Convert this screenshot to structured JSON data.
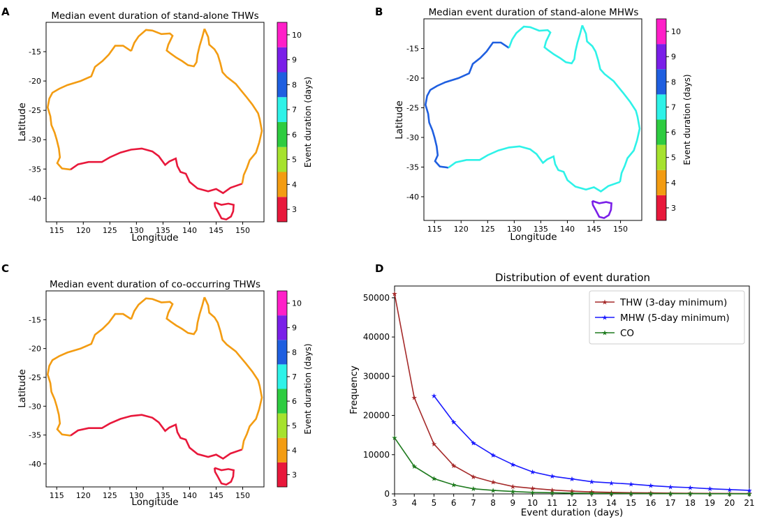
{
  "panel_letters": [
    "A",
    "B",
    "C",
    "D"
  ],
  "colorbar": {
    "label": "Event duration (days)",
    "ticks": [
      "3",
      "4",
      "5",
      "6",
      "7",
      "8",
      "9",
      "10"
    ],
    "colors": [
      "#e8183b",
      "#f39c12",
      "#a6e22e",
      "#2ecc40",
      "#2ef2e8",
      "#1f5fe0",
      "#7a1fe8",
      "#ff1fc8"
    ]
  },
  "chart_data": [
    {
      "type": "map",
      "panel": "A",
      "title": "Median event duration of stand-alone THWs",
      "xlabel": "Longitude",
      "ylabel": "Latitude",
      "xticks": [
        "115",
        "120",
        "125",
        "130",
        "135",
        "140",
        "145",
        "150"
      ],
      "yticks": [
        "-15",
        "-20",
        "-25",
        "-30",
        "-35",
        "-40"
      ],
      "xlim": [
        113,
        154
      ],
      "ylim": [
        -44,
        -10
      ],
      "coast_colors": {
        "north": "#f39c12",
        "west": "#f39c12",
        "south": "#e8183b",
        "east": "#f39c12",
        "tasmania": "#e8183b"
      }
    },
    {
      "type": "map",
      "panel": "B",
      "title": "Median event duration of stand-alone MHWs",
      "xlabel": "Longitude",
      "ylabel": "Latitude",
      "xticks": [
        "115",
        "120",
        "125",
        "130",
        "135",
        "140",
        "145",
        "150"
      ],
      "yticks": [
        "-15",
        "-20",
        "-25",
        "-30",
        "-35",
        "-40"
      ],
      "xlim": [
        113,
        154
      ],
      "ylim": [
        -44,
        -10
      ],
      "coast_colors": {
        "north": "#2ef2e8",
        "west": "#1f5fe0",
        "south": "#2ef2e8",
        "east": "#2ef2e8",
        "tasmania": "#7a1fe8"
      }
    },
    {
      "type": "map",
      "panel": "C",
      "title": "Median event duration of co-occurring THWs",
      "xlabel": "Longitude",
      "ylabel": "Latitude",
      "xticks": [
        "115",
        "120",
        "125",
        "130",
        "135",
        "140",
        "145",
        "150"
      ],
      "yticks": [
        "-15",
        "-20",
        "-25",
        "-30",
        "-35",
        "-40"
      ],
      "xlim": [
        113,
        154
      ],
      "ylim": [
        -44,
        -10
      ],
      "coast_colors": {
        "north": "#f39c12",
        "west": "#f39c12",
        "south": "#e8183b",
        "east": "#f39c12",
        "tasmania": "#e8183b"
      }
    },
    {
      "type": "line",
      "panel": "D",
      "title": "Distribution of event duration",
      "xlabel": "Event duration (days)",
      "ylabel": "Frequency",
      "x": [
        3,
        4,
        5,
        6,
        7,
        8,
        9,
        10,
        11,
        12,
        13,
        14,
        15,
        16,
        17,
        18,
        19,
        20,
        21
      ],
      "xlim": [
        3,
        21
      ],
      "ylim": [
        0,
        53000
      ],
      "yticks": [
        0,
        10000,
        20000,
        30000,
        40000,
        50000
      ],
      "legend_position": "top-right",
      "series": [
        {
          "name": "THW (3-day minimum)",
          "color": "#a52a2a",
          "x": [
            3,
            4,
            5,
            6,
            7,
            8,
            9,
            10,
            11,
            12,
            13,
            14,
            15,
            16,
            17,
            18,
            19,
            20,
            21
          ],
          "values": [
            51000,
            24500,
            12700,
            7200,
            4400,
            3000,
            1900,
            1400,
            1000,
            700,
            500,
            400,
            300,
            250,
            200,
            150,
            120,
            100,
            80
          ]
        },
        {
          "name": "MHW (5-day minimum)",
          "color": "#1a1aff",
          "x": [
            5,
            6,
            7,
            8,
            9,
            10,
            11,
            12,
            13,
            14,
            15,
            16,
            17,
            18,
            19,
            20,
            21
          ],
          "values": [
            25000,
            18300,
            13000,
            9900,
            7500,
            5600,
            4500,
            3800,
            3100,
            2800,
            2500,
            2100,
            1800,
            1600,
            1300,
            1100,
            900
          ]
        },
        {
          "name": "CO",
          "color": "#1e7a1e",
          "x": [
            3,
            4,
            5,
            6,
            7,
            8,
            9,
            10,
            11,
            12,
            13,
            14,
            15,
            16,
            17,
            18,
            19,
            20,
            21
          ],
          "values": [
            14300,
            7000,
            3900,
            2300,
            1300,
            900,
            600,
            400,
            300,
            200,
            150,
            120,
            100,
            80,
            60,
            50,
            40,
            30,
            20
          ]
        }
      ]
    }
  ]
}
